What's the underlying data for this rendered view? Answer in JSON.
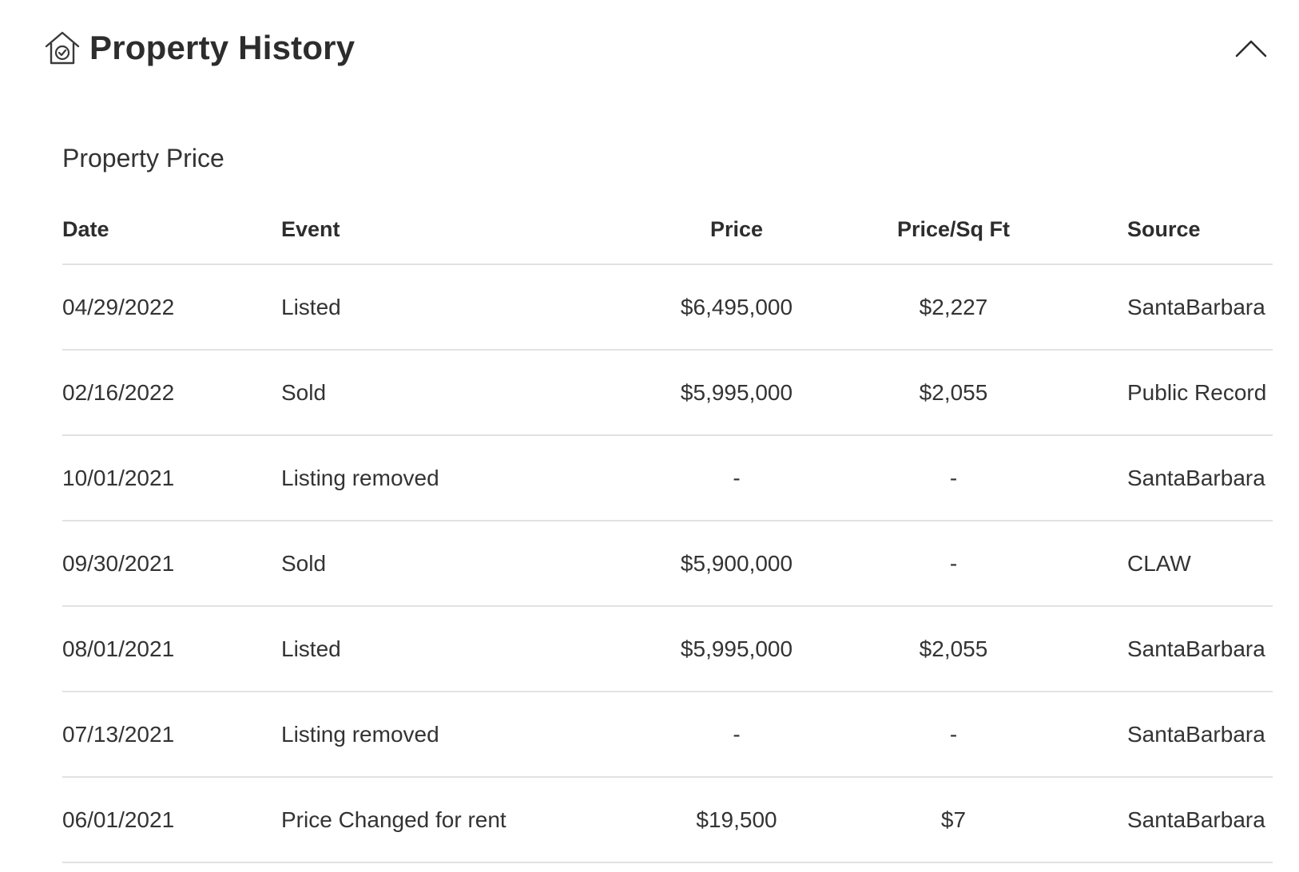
{
  "header": {
    "title": "Property History",
    "icon": "house-check-icon",
    "collapse_icon": "chevron-up-icon"
  },
  "section": {
    "title": "Property Price"
  },
  "table": {
    "columns": {
      "date": "Date",
      "event": "Event",
      "price": "Price",
      "price_sqft": "Price/Sq Ft",
      "source": "Source"
    },
    "rows": [
      {
        "date": "04/29/2022",
        "event": "Listed",
        "price": "$6,495,000",
        "price_sqft": "$2,227",
        "source": "SantaBarbara"
      },
      {
        "date": "02/16/2022",
        "event": "Sold",
        "price": "$5,995,000",
        "price_sqft": "$2,055",
        "source": "Public Record"
      },
      {
        "date": "10/01/2021",
        "event": "Listing removed",
        "price": "-",
        "price_sqft": "-",
        "source": "SantaBarbara"
      },
      {
        "date": "09/30/2021",
        "event": "Sold",
        "price": "$5,900,000",
        "price_sqft": "-",
        "source": "CLAW"
      },
      {
        "date": "08/01/2021",
        "event": "Listed",
        "price": "$5,995,000",
        "price_sqft": "$2,055",
        "source": "SantaBarbara"
      },
      {
        "date": "07/13/2021",
        "event": "Listing removed",
        "price": "-",
        "price_sqft": "-",
        "source": "SantaBarbara"
      },
      {
        "date": "06/01/2021",
        "event": "Price Changed for rent",
        "price": "$19,500",
        "price_sqft": "$7",
        "source": "SantaBarbara"
      }
    ]
  },
  "colors": {
    "text": "#333333",
    "divider": "#e2e2e2",
    "background": "#ffffff"
  }
}
